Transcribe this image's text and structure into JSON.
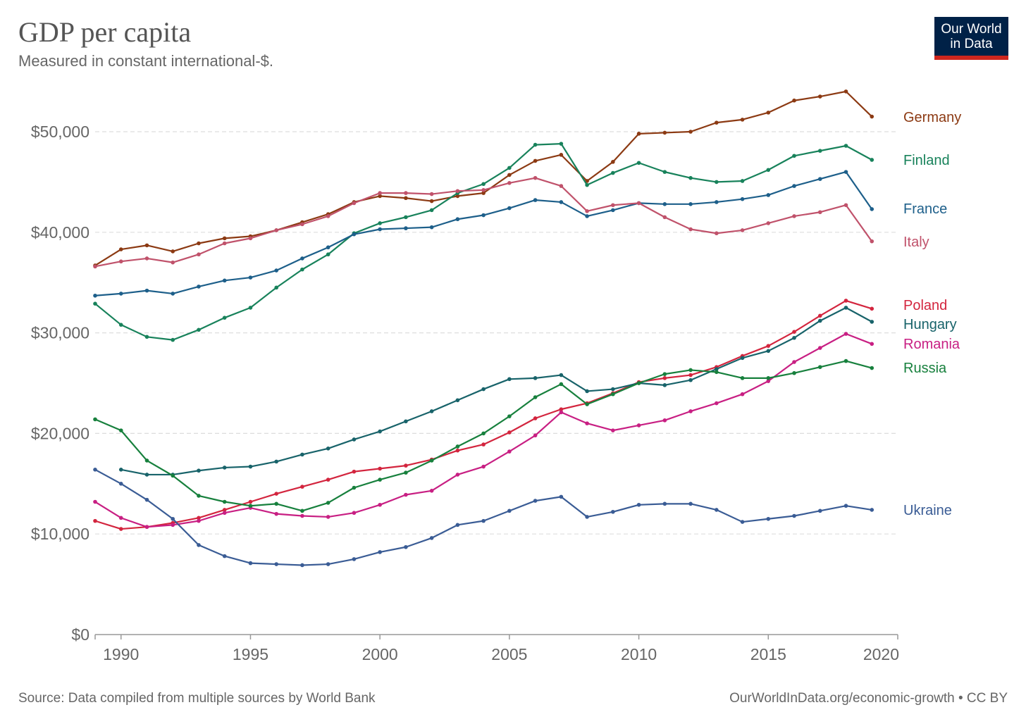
{
  "header": {
    "title": "GDP per capita",
    "subtitle": "Measured in constant international-$.",
    "logo_line1": "Our World",
    "logo_line2": "in Data"
  },
  "footer": {
    "source": "Source: Data compiled from multiple sources by World Bank",
    "credit": "OurWorldInData.org/economic-growth • CC BY"
  },
  "chart_data": {
    "type": "line",
    "title": "GDP per capita",
    "subtitle": "Measured in constant international-$.",
    "xlim": [
      1989,
      2020
    ],
    "ylim": [
      0,
      50000
    ],
    "grid": "horizontal-dashed",
    "legend": "inline-right-labels",
    "y_ticks": [
      0,
      10000,
      20000,
      30000,
      40000,
      50000
    ],
    "y_tick_labels": [
      "$0",
      "$10,000",
      "$20,000",
      "$30,000",
      "$40,000",
      "$50,000"
    ],
    "x_ticks": [
      1990,
      1995,
      2000,
      2005,
      2010,
      2015,
      2020
    ],
    "x_tick_labels": [
      "1990",
      "1995",
      "2000",
      "2005",
      "2010",
      "2015",
      "2020"
    ],
    "series": [
      {
        "name": "Germany",
        "color": "#8c3a13",
        "start": 1989,
        "values": [
          36700,
          38300,
          38700,
          38100,
          38900,
          39400,
          39600,
          40200,
          41000,
          41800,
          43000,
          43600,
          43400,
          43100,
          43600,
          43900,
          45700,
          47100,
          47700,
          45100,
          47000,
          49800,
          49900,
          50000,
          50900,
          51200,
          51900,
          53100,
          53500,
          54000,
          51500
        ]
      },
      {
        "name": "Finland",
        "color": "#18825b",
        "start": 1989,
        "values": [
          32900,
          30800,
          29600,
          29300,
          30300,
          31500,
          32500,
          34500,
          36300,
          37800,
          39900,
          40900,
          41500,
          42200,
          43900,
          44800,
          46400,
          48700,
          48800,
          44700,
          45900,
          46900,
          46000,
          45400,
          45000,
          45100,
          46200,
          47600,
          48100,
          48600,
          47200
        ]
      },
      {
        "name": "France",
        "color": "#1d5f8a",
        "start": 1989,
        "values": [
          33700,
          33900,
          34200,
          33900,
          34600,
          35200,
          35500,
          36200,
          37400,
          38500,
          39800,
          40300,
          40400,
          40500,
          41300,
          41700,
          42400,
          43200,
          43000,
          41600,
          42200,
          42900,
          42800,
          42800,
          43000,
          43300,
          43700,
          44600,
          45300,
          46000,
          42300
        ]
      },
      {
        "name": "Italy",
        "color": "#c0526b",
        "start": 1989,
        "values": [
          36600,
          37100,
          37400,
          37000,
          37800,
          38900,
          39400,
          40200,
          40800,
          41600,
          42900,
          43900,
          43900,
          43800,
          44100,
          44200,
          44900,
          45400,
          44600,
          42100,
          42700,
          42900,
          41500,
          40300,
          39900,
          40200,
          40900,
          41600,
          42000,
          42700,
          39100
        ]
      },
      {
        "name": "Poland",
        "color": "#d3253e",
        "start": 1989,
        "values": [
          11300,
          10500,
          10700,
          11100,
          11600,
          12400,
          13200,
          14000,
          14700,
          15400,
          16200,
          16500,
          16800,
          17400,
          18300,
          18900,
          20100,
          21500,
          22400,
          23000,
          24000,
          25100,
          25500,
          25800,
          26600,
          27700,
          28700,
          30100,
          31700,
          33200,
          32400
        ]
      },
      {
        "name": "Hungary",
        "color": "#18636a",
        "start": 1990,
        "values": [
          16400,
          15900,
          15900,
          16300,
          16600,
          16700,
          17200,
          17900,
          18500,
          19400,
          20200,
          21200,
          22200,
          23300,
          24400,
          25400,
          25500,
          25800,
          24200,
          24400,
          25000,
          24800,
          25300,
          26400,
          27500,
          28200,
          29500,
          31200,
          32500,
          31100
        ]
      },
      {
        "name": "Romania",
        "color": "#c81f83",
        "start": 1989,
        "values": [
          13200,
          11600,
          10700,
          10900,
          11300,
          12100,
          12600,
          12000,
          11800,
          11700,
          12100,
          12900,
          13900,
          14300,
          15900,
          16700,
          18200,
          19800,
          22100,
          21000,
          20300,
          20800,
          21300,
          22200,
          23000,
          23900,
          25200,
          27100,
          28500,
          29900,
          28900
        ]
      },
      {
        "name": "Russia",
        "color": "#17803d",
        "start": 1989,
        "values": [
          21400,
          20300,
          17300,
          15800,
          13800,
          13200,
          12800,
          13000,
          12300,
          13100,
          14600,
          15400,
          16100,
          17300,
          18700,
          20000,
          21700,
          23600,
          24900,
          22900,
          23900,
          25000,
          25900,
          26300,
          26100,
          25500,
          25500,
          26000,
          26600,
          27200,
          26500
        ]
      },
      {
        "name": "Ukraine",
        "color": "#3a5c95",
        "start": 1989,
        "values": [
          16400,
          15000,
          13400,
          11500,
          8900,
          7800,
          7100,
          7000,
          6900,
          7000,
          7500,
          8200,
          8700,
          9600,
          10900,
          11300,
          12300,
          13300,
          13700,
          11700,
          12200,
          12900,
          13000,
          13000,
          12400,
          11200,
          11500,
          11800,
          12300,
          12800,
          12400
        ]
      }
    ]
  }
}
